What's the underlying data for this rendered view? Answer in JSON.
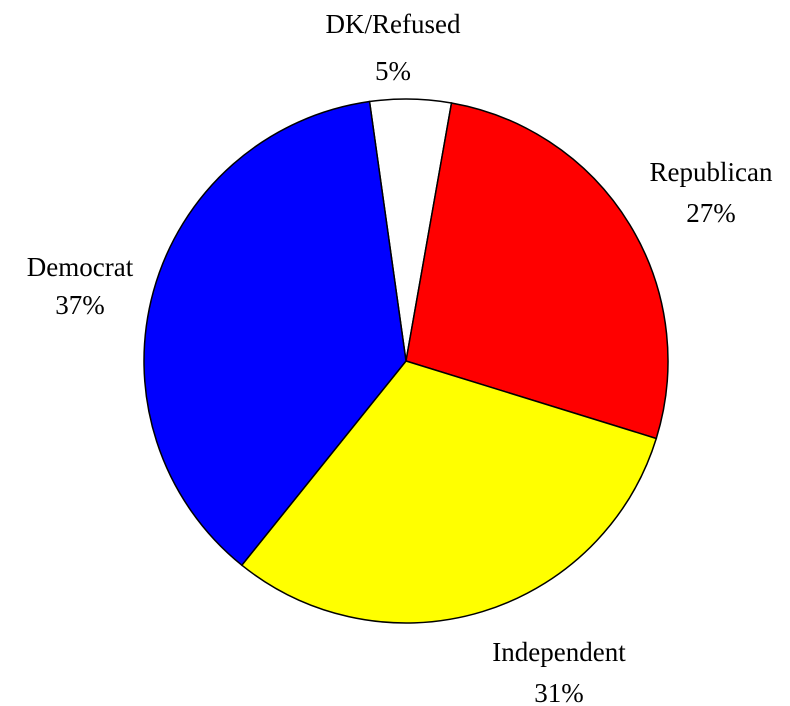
{
  "chart_data": {
    "type": "pie",
    "slices": [
      {
        "label": "DK/Refused",
        "value": 5,
        "value_label": "5%",
        "color": "#FFFFFF"
      },
      {
        "label": "Republican",
        "value": 27,
        "value_label": "27%",
        "color": "#FF0000"
      },
      {
        "label": "Independent",
        "value": 31,
        "value_label": "31%",
        "color": "#FFFF00"
      },
      {
        "label": "Democrat",
        "value": 37,
        "value_label": "37%",
        "color": "#0000FF"
      }
    ],
    "start": "top, slightly left of center",
    "direction": "clockwise",
    "legend": "none",
    "labels": "outside slices"
  }
}
